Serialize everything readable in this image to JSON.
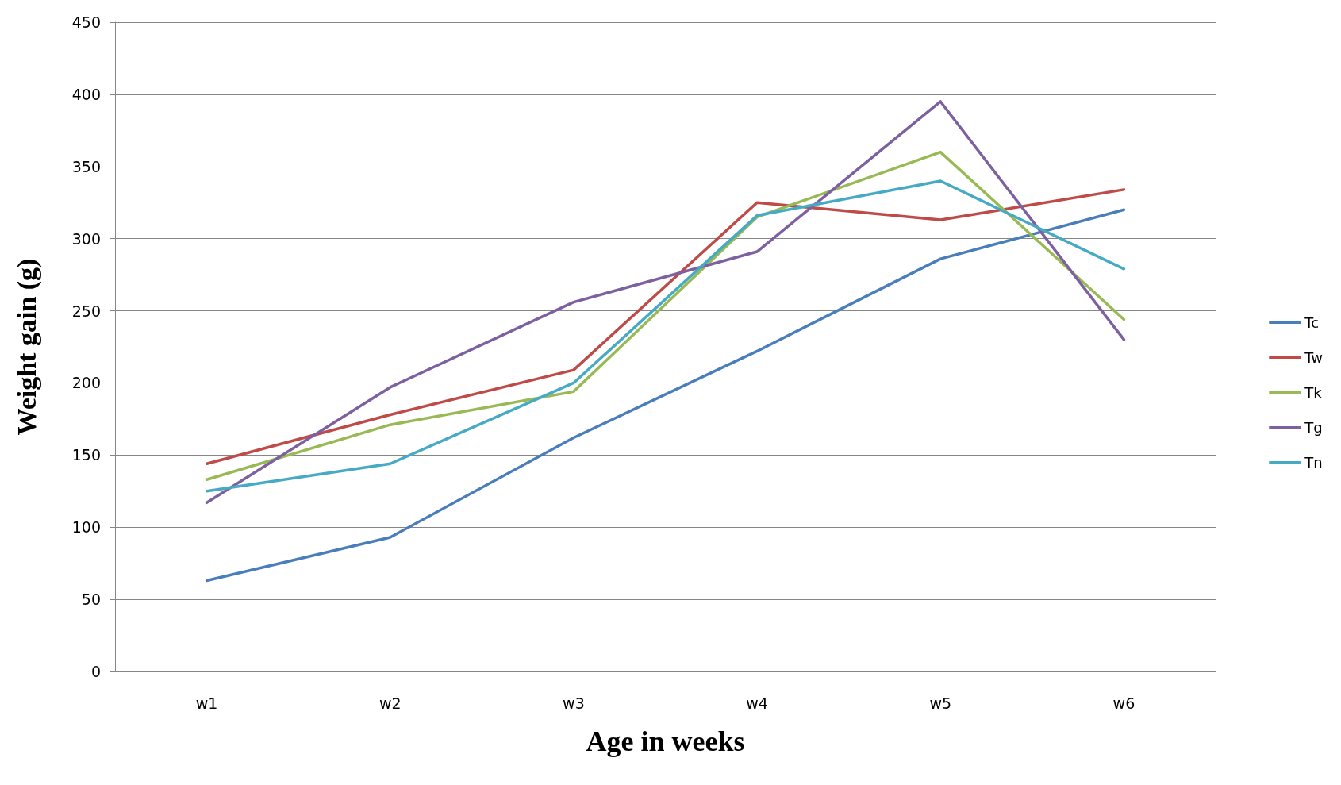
{
  "chart_data": {
    "type": "line",
    "xlabel": "Age in weeks",
    "ylabel": "Weight gain (g)",
    "categories": [
      "w1",
      "w2",
      "w3",
      "w4",
      "w5",
      "w6"
    ],
    "series": [
      {
        "name": "Tc",
        "color": "#4a7ebb",
        "values": [
          63,
          93,
          162,
          222,
          286,
          320
        ]
      },
      {
        "name": "Tw",
        "color": "#be4b48",
        "values": [
          144,
          178,
          209,
          325,
          313,
          334
        ]
      },
      {
        "name": "Tk",
        "color": "#98b954",
        "values": [
          133,
          171,
          194,
          315,
          360,
          244
        ]
      },
      {
        "name": "Tg",
        "color": "#7d60a0",
        "values": [
          117,
          197,
          256,
          291,
          395,
          230
        ]
      },
      {
        "name": "Tn",
        "color": "#46aac5",
        "values": [
          125,
          144,
          200,
          316,
          340,
          279
        ]
      }
    ],
    "ylim": [
      0,
      450
    ],
    "yticks": [
      0,
      50,
      100,
      150,
      200,
      250,
      300,
      350,
      400,
      450
    ],
    "grid": "y",
    "legend": "right",
    "marker": "none",
    "line_style": "solid"
  }
}
